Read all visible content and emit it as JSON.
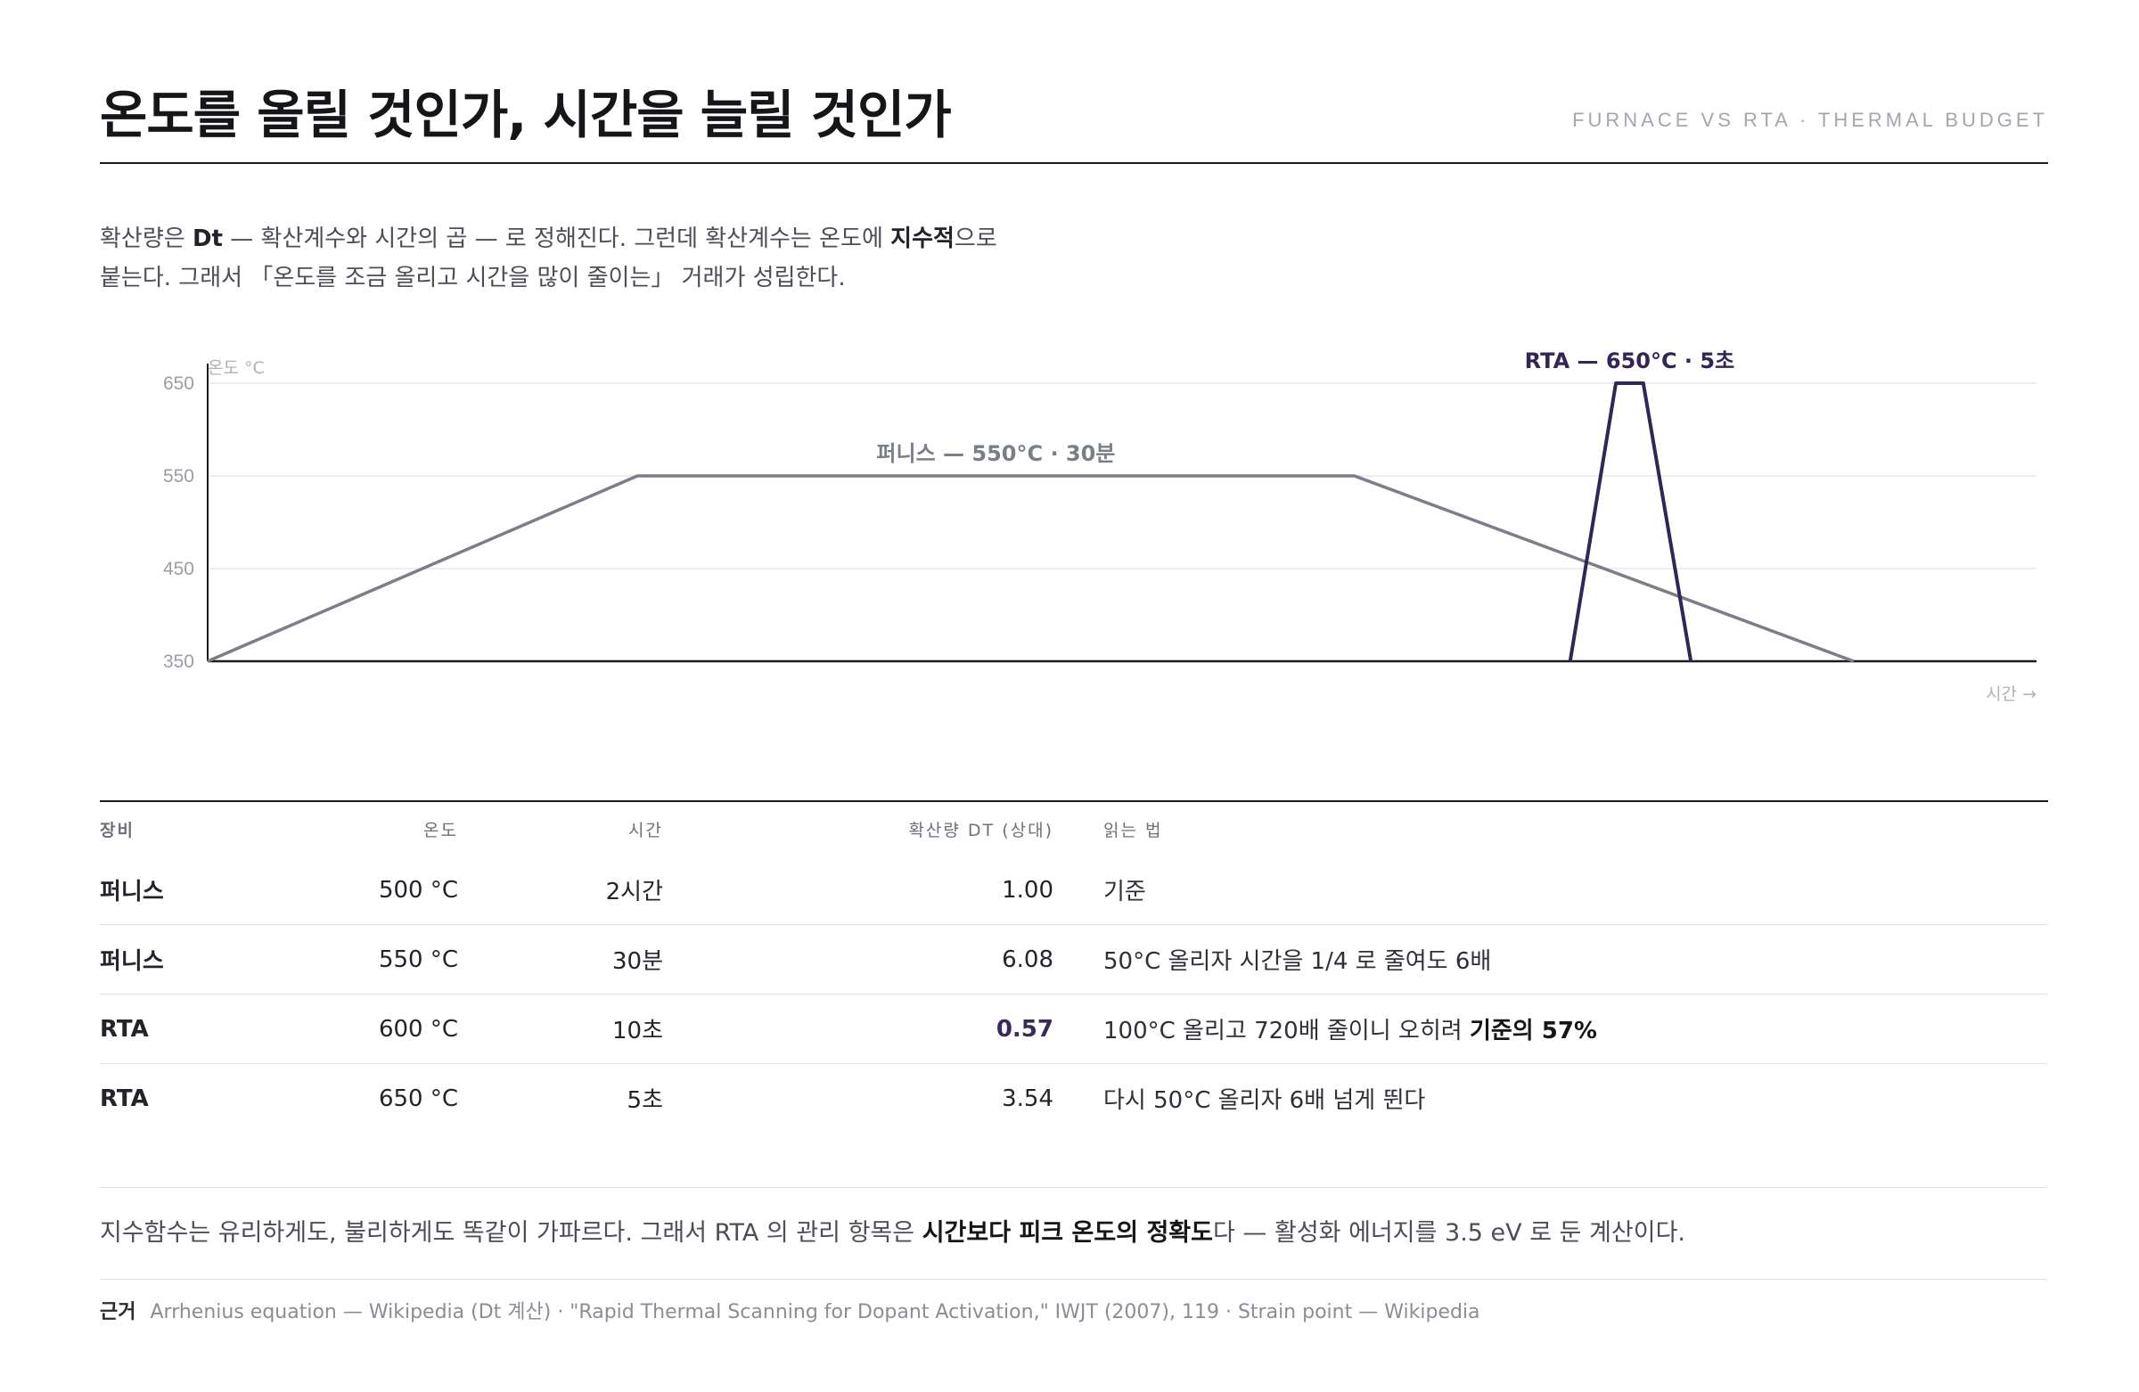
{
  "header": {
    "title": "온도를 올릴 것인가, 시간을 늘릴 것인가",
    "kicker": "FURNACE VS RTA · THERMAL BUDGET"
  },
  "intro": {
    "p1": "확산량은 ",
    "b1": "Dt",
    "p2": " — 확산계수와 시간의 곱 — 로 정해진다. 그런데 확산계수는 온도에 ",
    "b2": "지수적",
    "p3": "으로",
    "line2": "붙는다. 그래서 「온도를 조금 올리고 시간을 많이 줄이는」 거래가 성립한다."
  },
  "chart_data": {
    "type": "line",
    "ylabel": "온도 °C",
    "xlabel": "시간 →",
    "yticks": [
      650,
      550,
      450,
      350
    ],
    "ylim": [
      350,
      650
    ],
    "xlim": [
      0,
      100
    ],
    "grid": true,
    "series": [
      {
        "name": "퍼니스",
        "annotation": "퍼니스 — 550°C · 30분",
        "color": "#7a7e88",
        "x": [
          0,
          23.5,
          62.7,
          90
        ],
        "y": [
          350,
          550,
          550,
          350
        ]
      },
      {
        "name": "RTA",
        "annotation": "RTA — 650°C · 5초",
        "color": "#33245a",
        "x": [
          74.5,
          77.0,
          78.5,
          81.1
        ],
        "y": [
          350,
          650,
          650,
          350
        ]
      }
    ]
  },
  "table": {
    "headers": {
      "device": "장비",
      "temp": "온도",
      "time": "시간",
      "dt": "확산량 DT (상대)",
      "read": "읽는 법"
    },
    "rows": [
      {
        "device": "퍼니스",
        "temp": "500 °C",
        "time": "2시간",
        "dt": "1.00",
        "read": "기준",
        "read_bold": ""
      },
      {
        "device": "퍼니스",
        "temp": "550 °C",
        "time": "30분",
        "dt": "6.08",
        "read": "50°C 올리자 시간을 1/4 로 줄여도 6배",
        "read_bold": ""
      },
      {
        "device": "RTA",
        "temp": "600 °C",
        "time": "10초",
        "dt": "0.57",
        "read": "100°C 올리고 720배 줄이니 오히려 ",
        "read_bold": "기준의 57%"
      },
      {
        "device": "RTA",
        "temp": "650 °C",
        "time": "5초",
        "dt": "3.54",
        "read": "다시 50°C 올리자 6배 넘게 뛴다",
        "read_bold": ""
      }
    ]
  },
  "summary": {
    "p1": "지수함수는 유리하게도, 불리하게도 똑같이 가파르다. 그래서 RTA 의 관리 항목은 ",
    "bold": "시간보다 피크 온도의 정확도",
    "p2": "다 — 활성화 에너지를 3.5 eV 로 둔 계산이다."
  },
  "sources": {
    "label": "근거",
    "text": "Arrhenius equation — Wikipedia (Dt 계산) · \"Rapid Thermal Scanning for Dopant Activation,\" IWJT (2007), 119 · Strain point — Wikipedia"
  }
}
